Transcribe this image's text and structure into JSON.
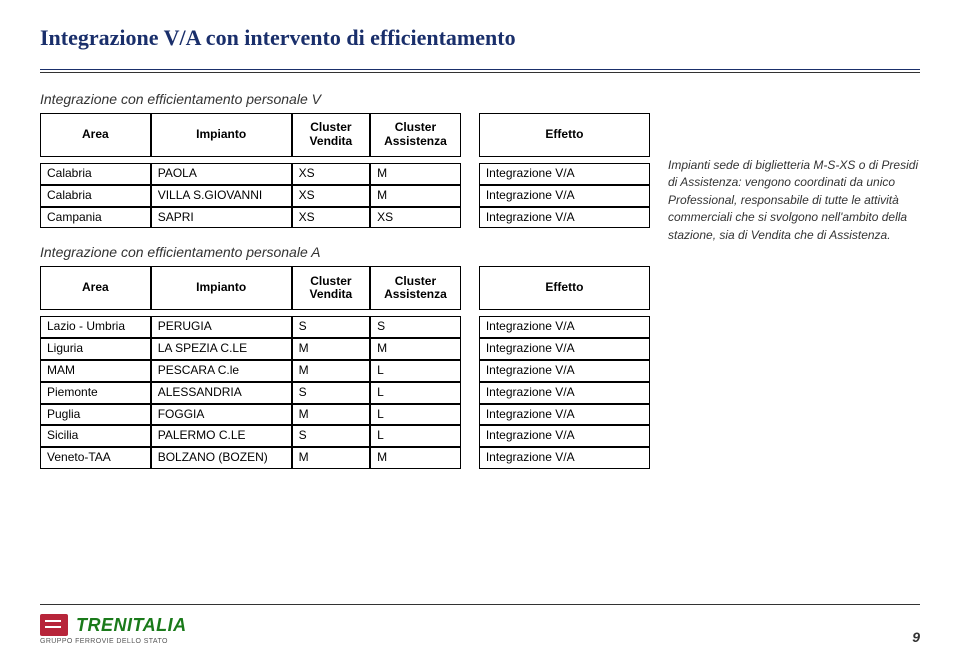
{
  "title": "Integrazione V/A con intervento di efficientamento",
  "section1_title": "Integrazione con efficientamento personale V",
  "section2_title": "Integrazione con efficientamento personale A",
  "headers": {
    "area": "Area",
    "impianto": "Impianto",
    "cluster_vendita": "Cluster Vendita",
    "cluster_assistenza": "Cluster Assistenza",
    "effetto": "Effetto"
  },
  "table1": {
    "rows": [
      {
        "area": "Calabria",
        "impianto": "PAOLA",
        "cv": "XS",
        "ca": "M",
        "effetto": "Integrazione V/A"
      },
      {
        "area": "Calabria",
        "impianto": "VILLA S.GIOVANNI",
        "cv": "XS",
        "ca": "M",
        "effetto": "Integrazione V/A"
      },
      {
        "area": "Campania",
        "impianto": "SAPRI",
        "cv": "XS",
        "ca": "XS",
        "effetto": "Integrazione V/A"
      }
    ]
  },
  "table2": {
    "rows": [
      {
        "area": "Lazio - Umbria",
        "impianto": "PERUGIA",
        "cv": "S",
        "ca": "S",
        "effetto": "Integrazione V/A"
      },
      {
        "area": "Liguria",
        "impianto": "LA SPEZIA C.LE",
        "cv": "M",
        "ca": "M",
        "effetto": "Integrazione V/A"
      },
      {
        "area": "MAM",
        "impianto": "PESCARA C.le",
        "cv": "M",
        "ca": "L",
        "effetto": "Integrazione V/A"
      },
      {
        "area": "Piemonte",
        "impianto": "ALESSANDRIA",
        "cv": "S",
        "ca": "L",
        "effetto": "Integrazione V/A"
      },
      {
        "area": "Puglia",
        "impianto": "FOGGIA",
        "cv": "M",
        "ca": "L",
        "effetto": "Integrazione V/A"
      },
      {
        "area": "Sicilia",
        "impianto": "PALERMO C.LE",
        "cv": "S",
        "ca": "L",
        "effetto": "Integrazione V/A"
      },
      {
        "area": "Veneto-TAA",
        "impianto": "BOLZANO (BOZEN)",
        "cv": "M",
        "ca": "M",
        "effetto": "Integrazione V/A"
      }
    ]
  },
  "note": "Impianti sede di biglietteria M-S-XS o di Presidi di Assistenza: vengono coordinati da unico Professional, responsabile di tutte le attività commerciali che si svolgono nell'ambito della stazione, sia di Vendita che di Assistenza.",
  "footer": {
    "brand": "TRENITALIA",
    "sub": "GRUPPO FERROVIE DELLO STATO",
    "page_number": "9"
  },
  "colors": {
    "title": "#1a2f6b",
    "brand_green": "#1a7a1a",
    "brand_red": "#b7253a",
    "border": "#000000",
    "text": "#333333",
    "background": "#ffffff"
  },
  "typography": {
    "title_fontsize_pt": 17,
    "subtitle_fontsize_pt": 11,
    "table_fontsize_pt": 9,
    "note_fontsize_pt": 9,
    "brand_fontsize_pt": 14
  }
}
